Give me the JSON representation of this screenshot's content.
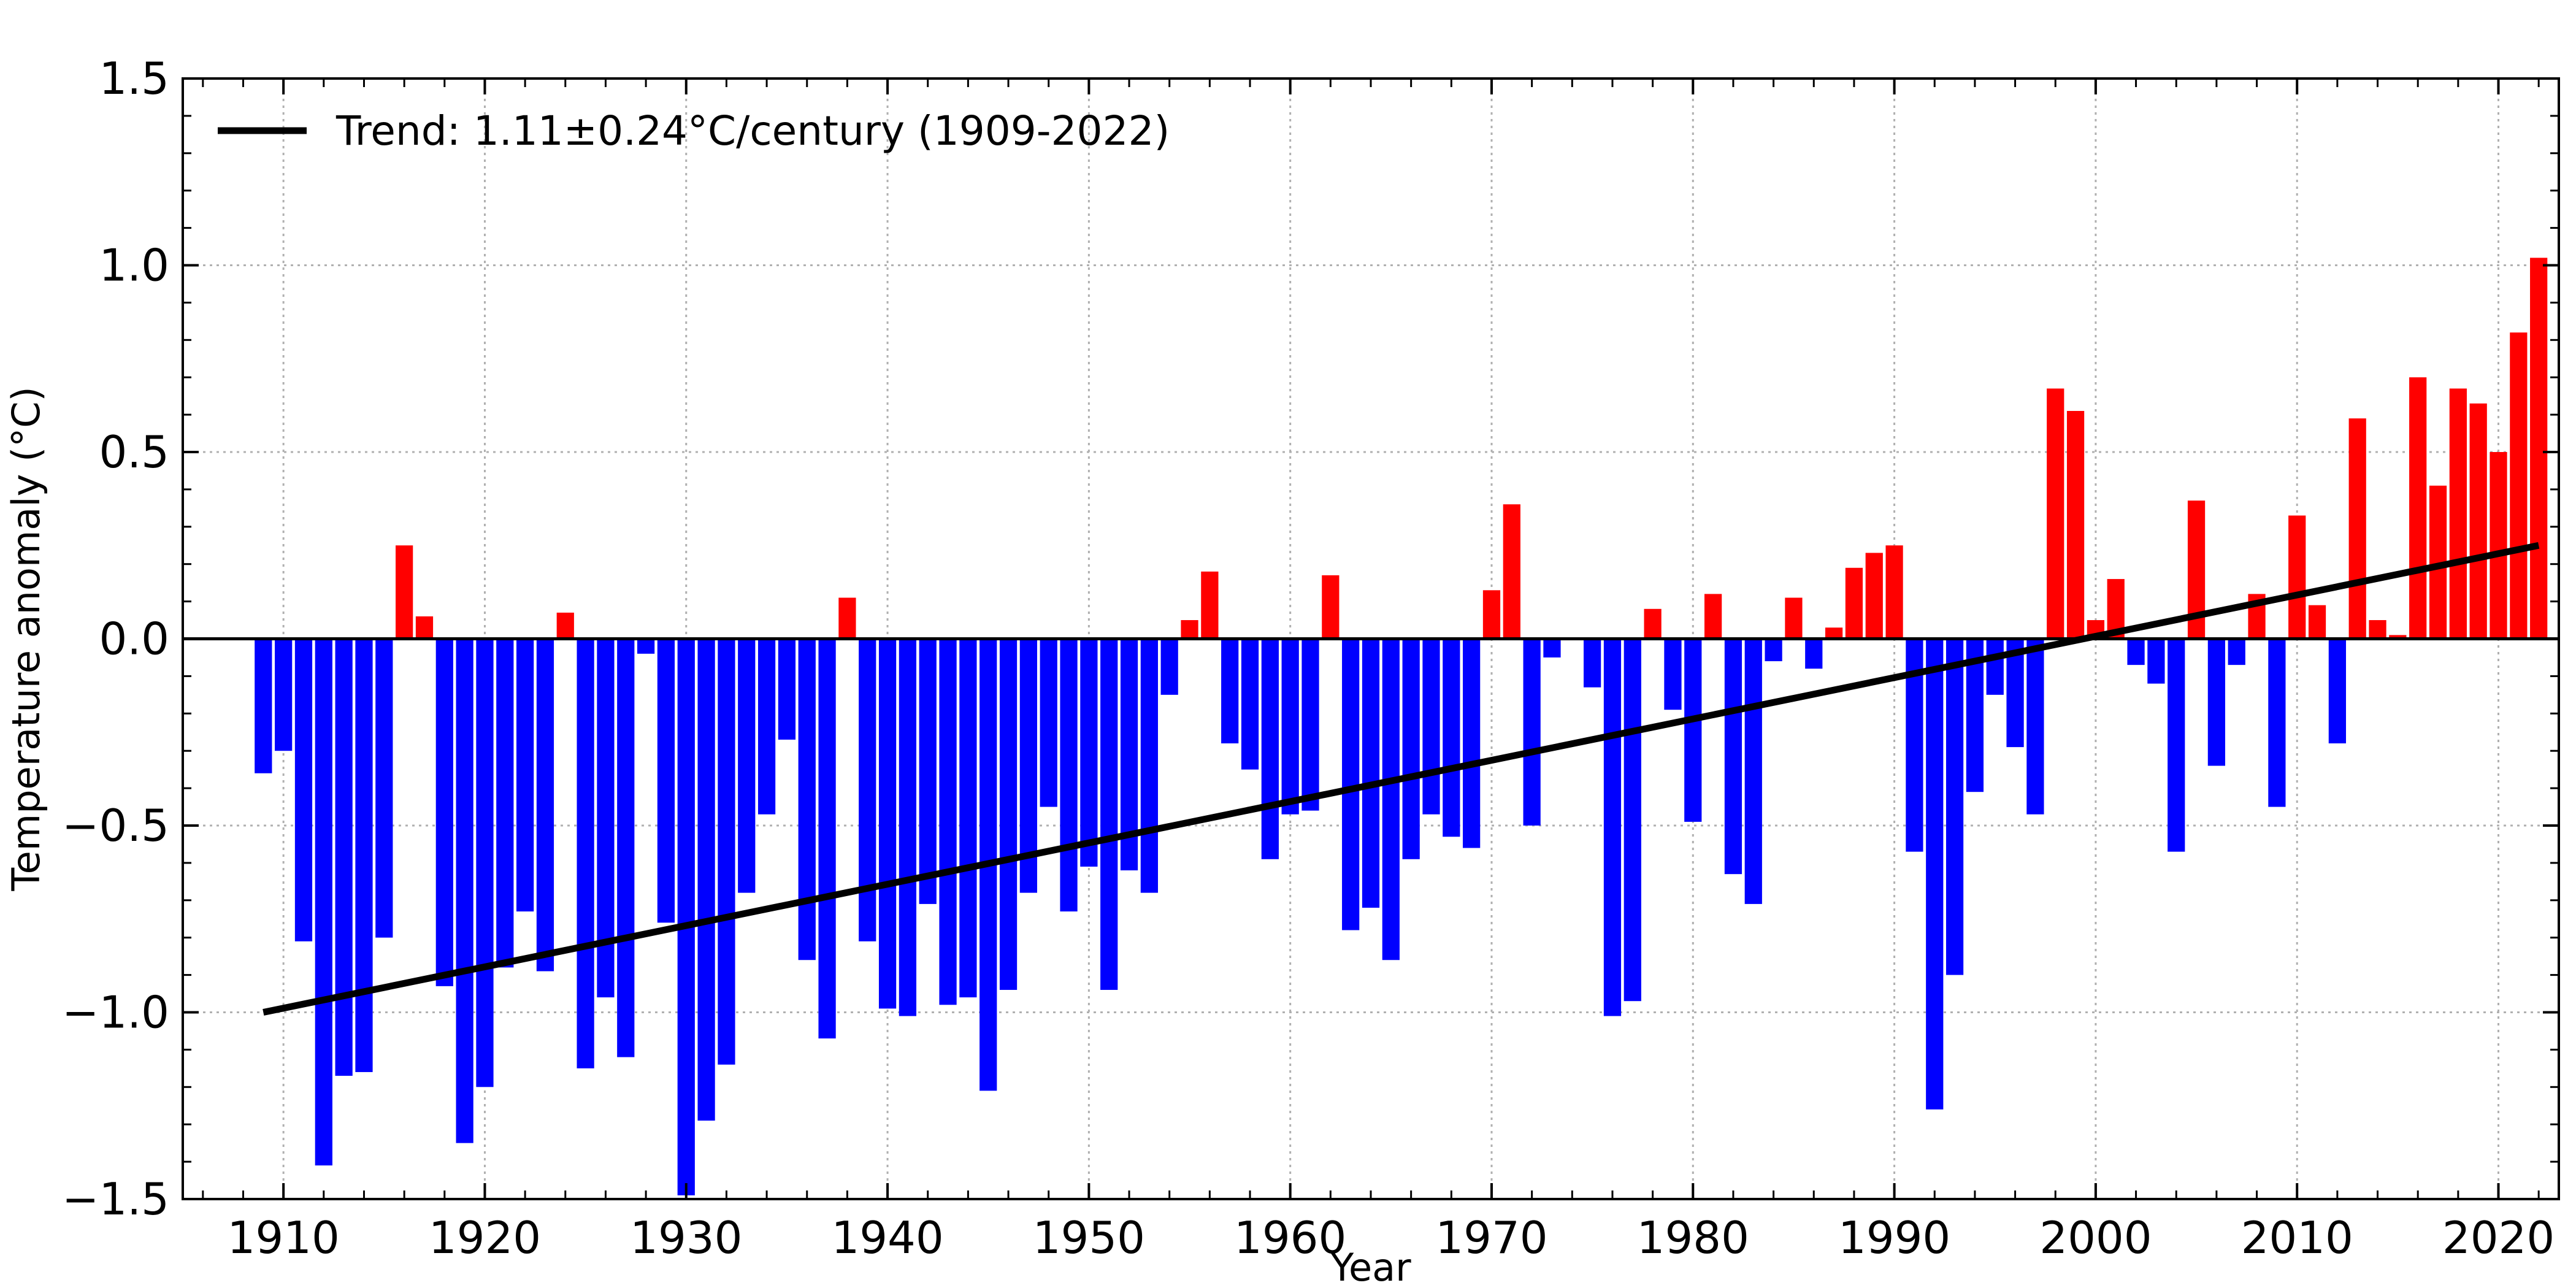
{
  "chart_data": {
    "type": "bar",
    "xlabel": "Year",
    "ylabel": "Temperature anomaly (°C)",
    "xlim": [
      1905,
      2023
    ],
    "ylim": [
      -1.5,
      1.5
    ],
    "x_ticks": [
      1910,
      1920,
      1930,
      1940,
      1950,
      1960,
      1970,
      1980,
      1990,
      2000,
      2010,
      2020
    ],
    "y_ticks": [
      -1.5,
      -1.0,
      -0.5,
      0.0,
      0.5,
      1.0,
      1.5
    ],
    "y_tick_labels": [
      "−1.5",
      "−1.0",
      "−0.5",
      "0.0",
      "0.5",
      "1.0",
      "1.5"
    ],
    "grid": true,
    "legend_position": "top-left",
    "colors": {
      "positive": "#ff0000",
      "negative": "#0000ff",
      "trend": "#000000",
      "grid": "#b0b0b0"
    },
    "x": [
      1909,
      1910,
      1911,
      1912,
      1913,
      1914,
      1915,
      1916,
      1917,
      1918,
      1919,
      1920,
      1921,
      1922,
      1923,
      1924,
      1925,
      1926,
      1927,
      1928,
      1929,
      1930,
      1931,
      1932,
      1933,
      1934,
      1935,
      1936,
      1937,
      1938,
      1939,
      1940,
      1941,
      1942,
      1943,
      1944,
      1945,
      1946,
      1947,
      1948,
      1949,
      1950,
      1951,
      1952,
      1953,
      1954,
      1955,
      1956,
      1957,
      1958,
      1959,
      1960,
      1961,
      1962,
      1963,
      1964,
      1965,
      1966,
      1967,
      1968,
      1969,
      1970,
      1971,
      1972,
      1973,
      1974,
      1975,
      1976,
      1977,
      1978,
      1979,
      1980,
      1981,
      1982,
      1983,
      1984,
      1985,
      1986,
      1987,
      1988,
      1989,
      1990,
      1991,
      1992,
      1993,
      1994,
      1995,
      1996,
      1997,
      1998,
      1999,
      2000,
      2001,
      2002,
      2003,
      2004,
      2005,
      2006,
      2007,
      2008,
      2009,
      2010,
      2011,
      2012,
      2013,
      2014,
      2015,
      2016,
      2017,
      2018,
      2019,
      2020,
      2021,
      2022
    ],
    "values": [
      -0.36,
      -0.3,
      -0.81,
      -1.41,
      -1.17,
      -1.16,
      -0.8,
      0.25,
      0.06,
      -0.93,
      -1.35,
      -1.2,
      -0.88,
      -0.73,
      -0.89,
      0.07,
      -1.15,
      -0.96,
      -1.12,
      -0.04,
      -0.76,
      -1.49,
      -1.29,
      -1.14,
      -0.68,
      -0.47,
      -0.27,
      -0.86,
      -1.07,
      0.11,
      -0.81,
      -0.99,
      -1.01,
      -0.71,
      -0.98,
      -0.96,
      -1.21,
      -0.94,
      -0.68,
      -0.45,
      -0.73,
      -0.61,
      -0.94,
      -0.62,
      -0.68,
      -0.15,
      0.05,
      0.18,
      -0.28,
      -0.35,
      -0.59,
      -0.47,
      -0.46,
      0.17,
      -0.78,
      -0.72,
      -0.86,
      -0.59,
      -0.47,
      -0.53,
      -0.56,
      0.13,
      0.36,
      -0.5,
      -0.05,
      0.0,
      -0.13,
      -1.01,
      -0.97,
      0.08,
      -0.19,
      -0.49,
      0.12,
      -0.63,
      -0.71,
      -0.06,
      0.11,
      -0.08,
      0.03,
      0.19,
      0.23,
      0.25,
      -0.57,
      -1.26,
      -0.9,
      -0.41,
      -0.15,
      -0.29,
      -0.47,
      0.67,
      0.61,
      0.05,
      0.16,
      -0.07,
      -0.12,
      -0.57,
      0.37,
      -0.34,
      -0.07,
      0.12,
      -0.45,
      0.33,
      0.09,
      -0.28,
      0.59,
      0.05,
      0.01,
      0.7,
      0.41,
      0.67,
      0.63,
      0.5,
      0.82,
      1.02
    ],
    "trend": {
      "label": "Trend: 1.11±0.24°C/century (1909-2022)",
      "x": [
        1909,
        2022
      ],
      "y": [
        -1.0,
        0.25
      ]
    }
  }
}
